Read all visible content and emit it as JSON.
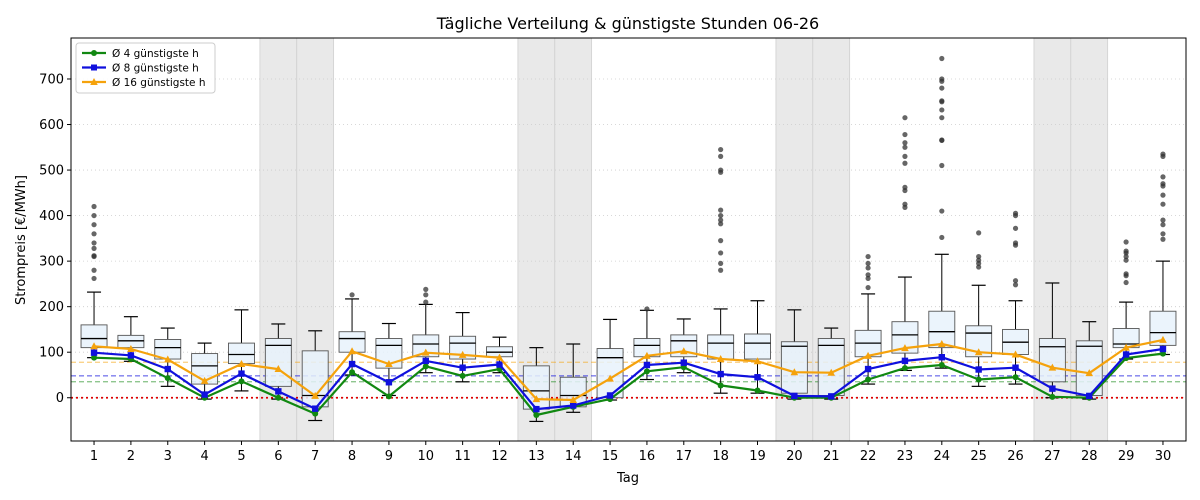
{
  "chart_data": {
    "type": "box",
    "title": "Tägliche Verteilung & günstigste Stunden 06-26",
    "xlabel": "Tag",
    "ylabel": "Strompreis [€/MWh]",
    "ylim": [
      -95,
      790
    ],
    "yticks": [
      0,
      100,
      200,
      300,
      400,
      500,
      600,
      700
    ],
    "grid": "horizontal-dotted",
    "legend_position": "top-left",
    "categories": [
      1,
      2,
      3,
      4,
      5,
      6,
      7,
      8,
      9,
      10,
      11,
      12,
      13,
      14,
      15,
      16,
      17,
      18,
      19,
      20,
      21,
      22,
      23,
      24,
      25,
      26,
      27,
      28,
      29,
      30
    ],
    "weekend_days": [
      6,
      7,
      13,
      14,
      20,
      21,
      27,
      28
    ],
    "colors": {
      "box_fill": "#e8f2fb",
      "box_edge": "#555555",
      "weekend_shade": "#e9e9e9",
      "zero_line": "#dd0000",
      "cheap4": "#118811",
      "cheap8": "#1010dd",
      "cheap16": "#f5a20c"
    },
    "reference_lines": [
      {
        "value": 0,
        "style": "dotted",
        "color": "#dd0000"
      },
      {
        "value": 35,
        "style": "dashed",
        "color": "#118811"
      },
      {
        "value": 48,
        "style": "dashed",
        "color": "#1010dd"
      },
      {
        "value": 78,
        "style": "dashed",
        "color": "#f5a20c"
      }
    ],
    "boxes": [
      {
        "day": 1,
        "wlo": 88,
        "q1": 110,
        "med": 130,
        "q3": 160,
        "whi": 232,
        "outliers": [
          262,
          280,
          310,
          312,
          328,
          340,
          360,
          380,
          400,
          420
        ]
      },
      {
        "day": 2,
        "wlo": 80,
        "q1": 110,
        "med": 125,
        "q3": 137,
        "whi": 178,
        "outliers": []
      },
      {
        "day": 3,
        "wlo": 25,
        "q1": 85,
        "med": 110,
        "q3": 128,
        "whi": 153,
        "outliers": []
      },
      {
        "day": 4,
        "wlo": -3,
        "q1": 30,
        "med": 70,
        "q3": 97,
        "whi": 120,
        "outliers": []
      },
      {
        "day": 5,
        "wlo": 15,
        "q1": 75,
        "med": 95,
        "q3": 120,
        "whi": 193,
        "outliers": []
      },
      {
        "day": 6,
        "wlo": -3,
        "q1": 25,
        "med": 115,
        "q3": 130,
        "whi": 162,
        "outliers": []
      },
      {
        "day": 7,
        "wlo": -50,
        "q1": -20,
        "med": 5,
        "q3": 103,
        "whi": 147,
        "outliers": []
      },
      {
        "day": 8,
        "wlo": 50,
        "q1": 100,
        "med": 130,
        "q3": 145,
        "whi": 217,
        "outliers": [
          226
        ]
      },
      {
        "day": 9,
        "wlo": 5,
        "q1": 65,
        "med": 115,
        "q3": 130,
        "whi": 163,
        "outliers": []
      },
      {
        "day": 10,
        "wlo": 55,
        "q1": 90,
        "med": 118,
        "q3": 138,
        "whi": 205,
        "outliers": [
          210,
          226,
          238
        ]
      },
      {
        "day": 11,
        "wlo": 35,
        "q1": 85,
        "med": 120,
        "q3": 135,
        "whi": 187,
        "outliers": []
      },
      {
        "day": 12,
        "wlo": 55,
        "q1": 90,
        "med": 100,
        "q3": 112,
        "whi": 133,
        "outliers": []
      },
      {
        "day": 13,
        "wlo": -52,
        "q1": -25,
        "med": 15,
        "q3": 70,
        "whi": 110,
        "outliers": []
      },
      {
        "day": 14,
        "wlo": -32,
        "q1": -20,
        "med": 5,
        "q3": 45,
        "whi": 118,
        "outliers": []
      },
      {
        "day": 15,
        "wlo": -5,
        "q1": 0,
        "med": 88,
        "q3": 108,
        "whi": 172,
        "outliers": []
      },
      {
        "day": 16,
        "wlo": 40,
        "q1": 90,
        "med": 115,
        "q3": 130,
        "whi": 192,
        "outliers": [
          195
        ]
      },
      {
        "day": 17,
        "wlo": 55,
        "q1": 90,
        "med": 125,
        "q3": 138,
        "whi": 173,
        "outliers": []
      },
      {
        "day": 18,
        "wlo": 10,
        "q1": 85,
        "med": 120,
        "q3": 138,
        "whi": 195,
        "outliers": [
          280,
          295,
          318,
          345,
          382,
          390,
          400,
          412,
          495,
          500,
          530,
          545
        ]
      },
      {
        "day": 19,
        "wlo": 10,
        "q1": 85,
        "med": 120,
        "q3": 140,
        "whi": 213,
        "outliers": []
      },
      {
        "day": 20,
        "wlo": -3,
        "q1": 10,
        "med": 113,
        "q3": 123,
        "whi": 193,
        "outliers": []
      },
      {
        "day": 21,
        "wlo": -3,
        "q1": 5,
        "med": 115,
        "q3": 130,
        "whi": 153,
        "outliers": []
      },
      {
        "day": 22,
        "wlo": 30,
        "q1": 90,
        "med": 120,
        "q3": 148,
        "whi": 228,
        "outliers": [
          242,
          262,
          270,
          285,
          295,
          310
        ]
      },
      {
        "day": 23,
        "wlo": 60,
        "q1": 98,
        "med": 138,
        "q3": 167,
        "whi": 265,
        "outliers": [
          418,
          425,
          455,
          462,
          515,
          530,
          550,
          560,
          578,
          615
        ]
      },
      {
        "day": 24,
        "wlo": 65,
        "q1": 110,
        "med": 145,
        "q3": 190,
        "whi": 315,
        "outliers": [
          352,
          410,
          510,
          565,
          566,
          615,
          632,
          650,
          652,
          680,
          695,
          700,
          745
        ]
      },
      {
        "day": 25,
        "wlo": 25,
        "q1": 90,
        "med": 142,
        "q3": 158,
        "whi": 247,
        "outliers": [
          287,
          295,
          302,
          310,
          362
        ]
      },
      {
        "day": 26,
        "wlo": 30,
        "q1": 95,
        "med": 122,
        "q3": 150,
        "whi": 213,
        "outliers": [
          248,
          257,
          335,
          340,
          372,
          400,
          405
        ]
      },
      {
        "day": 27,
        "wlo": 0,
        "q1": 35,
        "med": 112,
        "q3": 130,
        "whi": 252,
        "outliers": []
      },
      {
        "day": 28,
        "wlo": -3,
        "q1": 5,
        "med": 113,
        "q3": 125,
        "whi": 167,
        "outliers": []
      },
      {
        "day": 29,
        "wlo": 85,
        "q1": 110,
        "med": 118,
        "q3": 152,
        "whi": 210,
        "outliers": [
          253,
          268,
          272,
          302,
          310,
          318,
          322,
          342
        ]
      },
      {
        "day": 30,
        "wlo": 95,
        "q1": 115,
        "med": 143,
        "q3": 190,
        "whi": 300,
        "outliers": [
          348,
          360,
          380,
          390,
          425,
          445,
          465,
          470,
          485,
          530,
          535
        ]
      }
    ],
    "series": [
      {
        "name": "Ø 4 günstigste h",
        "color": "#118811",
        "marker": "circle",
        "values": [
          88,
          85,
          43,
          0,
          36,
          0,
          -35,
          56,
          3,
          69,
          48,
          63,
          -38,
          -20,
          -3,
          58,
          67,
          27,
          16,
          0,
          0,
          40,
          65,
          72,
          40,
          45,
          2,
          0,
          87,
          97
        ]
      },
      {
        "name": "Ø 8 günstigste h",
        "color": "#1010dd",
        "marker": "square",
        "values": [
          99,
          93,
          63,
          7,
          53,
          14,
          -24,
          74,
          34,
          81,
          66,
          73,
          -25,
          -17,
          5,
          72,
          77,
          52,
          45,
          4,
          3,
          63,
          81,
          89,
          62,
          66,
          20,
          4,
          95,
          107
        ]
      },
      {
        "name": "Ø 16 günstigste h",
        "color": "#f5a20c",
        "marker": "triangle",
        "values": [
          113,
          107,
          84,
          37,
          74,
          63,
          4,
          102,
          74,
          99,
          94,
          88,
          -3,
          -5,
          42,
          92,
          102,
          85,
          80,
          56,
          55,
          92,
          109,
          118,
          100,
          95,
          66,
          54,
          110,
          127
        ]
      }
    ]
  }
}
